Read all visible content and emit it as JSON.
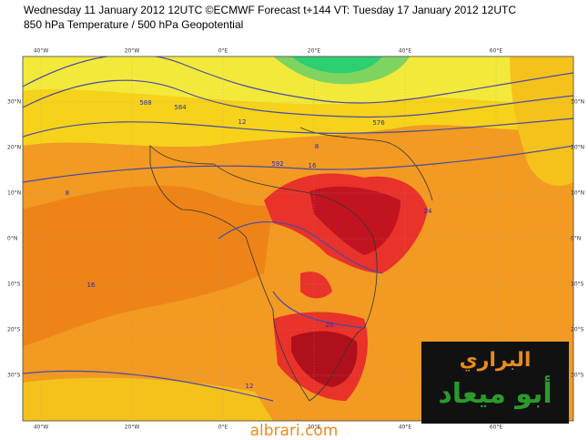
{
  "header": {
    "line1": "Wednesday 11 January 2012 12UTC ©ECMWF Forecast t+144 VT: Tuesday 17 January 2012 12UTC",
    "line2": "850 hPa Temperature / 500 hPa Geopotential"
  },
  "map": {
    "lon_labels": [
      "40°W",
      "20°W",
      "0°E",
      "20°E",
      "40°E",
      "60°E"
    ],
    "lat_labels": [
      "30°N",
      "20°N",
      "10°N",
      "0°N",
      "10°S",
      "20°S",
      "30°S"
    ],
    "contour_labels": [
      "588",
      "584",
      "576",
      "592",
      "16",
      "12",
      "8",
      "20",
      "24",
      "12",
      "16",
      "8"
    ]
  },
  "logo": {
    "line1": "البراري",
    "line2": "أبو ميعاد"
  },
  "footer": {
    "site": "albrari.com"
  }
}
